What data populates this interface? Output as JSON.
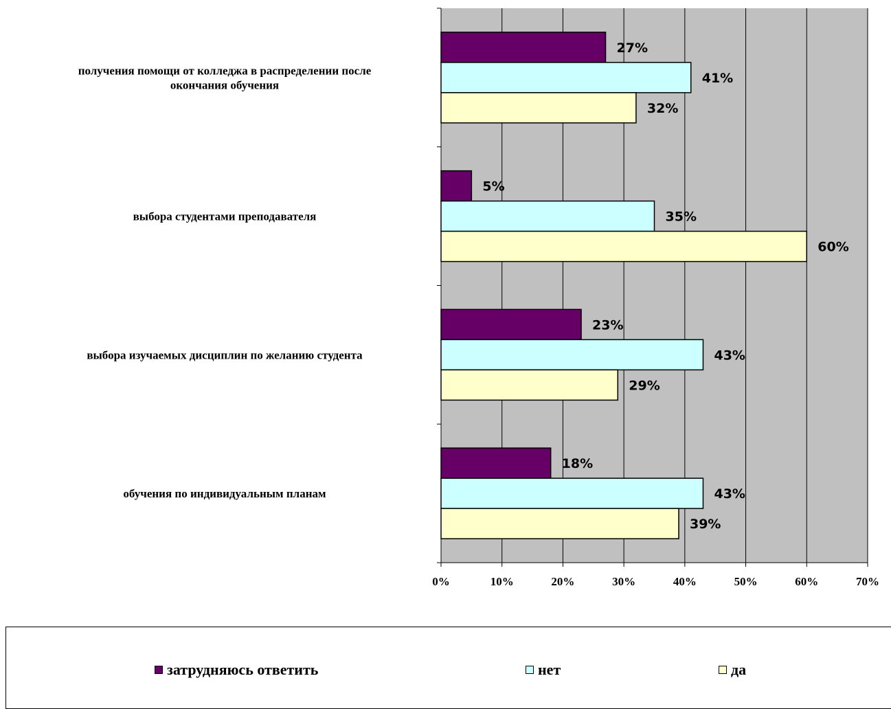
{
  "chart_data": {
    "type": "bar",
    "orientation": "horizontal",
    "categories": [
      "получения помощи от колледжа в распределении после окончания обучения",
      "выбора студентами преподавателя",
      "выбора изучаемых дисциплин по желанию студента",
      "обучения по индивидуальным планам"
    ],
    "category_lines": [
      [
        "получения помощи от колледжа в распределении после",
        "окончания обучения"
      ],
      [
        "выбора студентами преподавателя"
      ],
      [
        "выбора изучаемых дисциплин по желанию студента"
      ],
      [
        "обучения по индивидуальным планам"
      ]
    ],
    "series": [
      {
        "name": "затрудняюсь ответить",
        "color": "#660066",
        "values": [
          27,
          5,
          23,
          18
        ],
        "labels": [
          "27%",
          "5%",
          "23%",
          "18%"
        ]
      },
      {
        "name": "нет",
        "color": "#ccffff",
        "values": [
          41,
          35,
          43,
          43
        ],
        "labels": [
          "41%",
          "35%",
          "43%",
          "43%"
        ]
      },
      {
        "name": "да",
        "color": "#ffffcc",
        "values": [
          32,
          60,
          29,
          39
        ],
        "labels": [
          "32%",
          "60%",
          "29%",
          "39%"
        ]
      }
    ],
    "xlim": [
      0,
      70
    ],
    "xticks": [
      0,
      10,
      20,
      30,
      40,
      50,
      60,
      70
    ],
    "xtick_labels": [
      "0%",
      "10%",
      "20%",
      "30%",
      "40%",
      "50%",
      "60%",
      "70%"
    ],
    "plot_background": "#c0c0c0",
    "grid": true,
    "legend_position": "bottom"
  },
  "legend": {
    "items": [
      {
        "label": "затрудняюсь ответить",
        "color": "#660066"
      },
      {
        "label": "нет",
        "color": "#ccffff"
      },
      {
        "label": "да",
        "color": "#ffffcc"
      }
    ]
  }
}
